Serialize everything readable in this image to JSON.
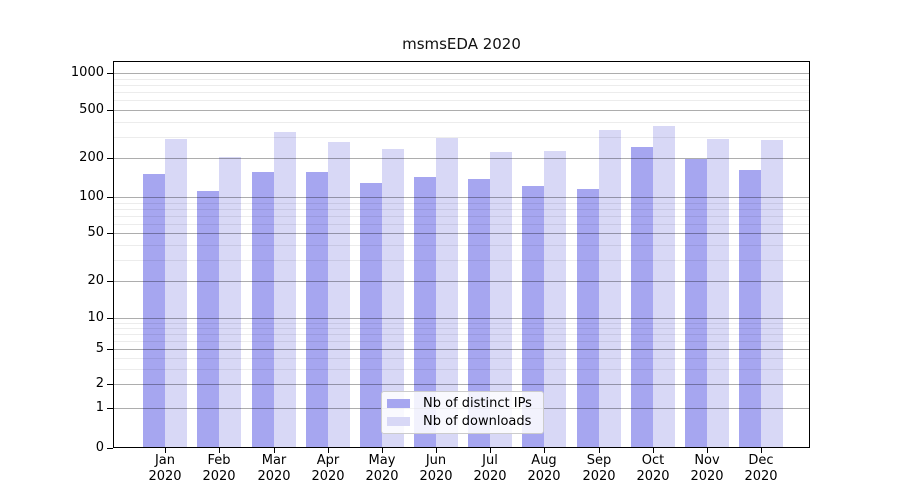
{
  "title": "msmsEDA 2020",
  "chart_data": {
    "type": "bar",
    "title": "msmsEDA 2020",
    "xlabel": "",
    "ylabel": "",
    "categories": [
      "Jan",
      "Feb",
      "Mar",
      "Apr",
      "May",
      "Jun",
      "Jul",
      "Aug",
      "Sep",
      "Oct",
      "Nov",
      "Dec"
    ],
    "category_year": "2020",
    "series": [
      {
        "name": "Nb of distinct IPs",
        "key": "distinct-ips",
        "color": "#a6a6f0",
        "values": [
          151,
          111,
          157,
          157,
          129,
          142,
          138,
          122,
          115,
          245,
          195,
          162
        ]
      },
      {
        "name": "Nb of downloads",
        "key": "downloads",
        "color": "#d8d8f6",
        "values": [
          286,
          204,
          330,
          273,
          237,
          291,
          226,
          229,
          343,
          371,
          286,
          282
        ]
      }
    ],
    "yscale": "log-like (symlog with 0 baseline)",
    "ylim": [
      0,
      1150
    ],
    "y_major_ticks": [
      0,
      1,
      2,
      5,
      10,
      20,
      50,
      100,
      200,
      500,
      1000
    ],
    "y_minor_gridlines": [
      3,
      4,
      6,
      7,
      8,
      9,
      30,
      40,
      60,
      70,
      80,
      90,
      300,
      400,
      600,
      700,
      800,
      900
    ],
    "grid": "horizontal major and minor gridlines, drawn over bars",
    "legend": {
      "position": "inside lower center",
      "entries": [
        "Nb of distinct IPs",
        "Nb of downloads"
      ]
    },
    "colors": {
      "background": "#ffffff",
      "frame": "#000000",
      "grid_major": "#adadad",
      "grid_minor": "#ededed",
      "text": "#000000"
    }
  }
}
